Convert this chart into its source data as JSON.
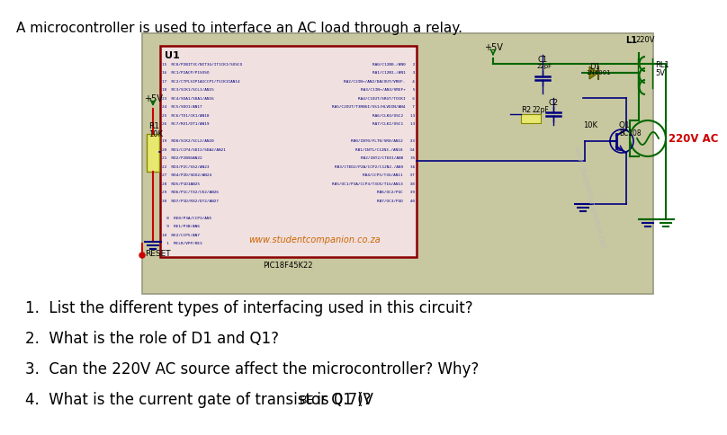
{
  "title": "A microcontroller is used to interface an AC load through a relay.",
  "title_fontsize": 11,
  "bg_color": "#ffffff",
  "circuit_bg": "#c8c8a0",
  "circuit_border": "#999980",
  "q_fontsize": 12,
  "chip_color": "#8b0000",
  "chip_fill": "#f5e8e8",
  "chip_label": "U1",
  "chip_text_color": "#000080",
  "website": "www.studentcompanion.co.za",
  "website_color": "#cc6600",
  "vcc_label": "+5V",
  "relay_label": "RL1\n5V",
  "ac_label": "220V AC",
  "ac_color": "#cc0000",
  "l1_label": "L1",
  "l1_v_label": "220V",
  "r1_label": "R1",
  "r2_label": "R2",
  "c1_label": "C1",
  "c2_label": "C2",
  "d1_label": "D1",
  "q1_label": "Q1",
  "pic_label": "PIC18F45K22",
  "reset_label": "RESET",
  "wire_color_green": "#006600",
  "wire_color_red": "#cc0000",
  "wire_color_blue": "#000080",
  "left_pins": [
    "15  RC0/P2BIT3C/NIT3G/IT1CKI/SOSCO",
    "16  RC1/P2ACP/P1SOSO",
    "17  RC2/CTPLSIP1AICCP1/T5CKIIAN14",
    "18  RC3/SCK1/SCL1/AN15",
    "23  RC4/SDA1/SDA1/AN16",
    "24  RC5/SDO1/AN17",
    "25  RC6/TX1/CK1/AN18",
    "26  RC7/RX1/DT1/AN19",
    "",
    "19  RD0/SCK2/SCL2/AN20",
    "20  RD1/CCP4/SDI2/SDA2/AN21",
    "21  RD2/P2BSDAN22",
    "22  RD3/P2C/SS2/AN23",
    "27  RD4/P2D/SDO2/AN24",
    "28  RD5/P1DIAN25",
    "29  RD6/P1C/TX2/CK2/AN26",
    "30  RD7/P1D/RX2/DT2/AN27",
    "",
    "  8  RE0/P3A/CCP3/AN5",
    "  9  RE1/P3B/AN6",
    "10  RE2/CCP5/AN7",
    "  1  MCLR/VPP/RE3"
  ],
  "right_pins": [
    "RA0/C12N0-/AN0   2",
    "RA1/C12N1-/AN1   3",
    "RA2/C2IN+/AN2/DACOUT/VREF-   4",
    "RA3/C1IN+/AN3/VREF+   5",
    "RA4/C1OUT/SRGT/TOCKI   6",
    "RA5/C2OUT/T3RNGI/SS1/HLVDIN/AN4   7",
    "RA6/CLKO/OSC2   13",
    "RA7/CLKI/OSC1   13",
    "",
    "RB0/INT0/FLT0/SR0/AN12   33",
    "RB1/INT1/C12N3-/AN10   34",
    "RB2/INT2/CTED1/AN8   35",
    "RB3/CTED2/P2A/CCP2/C12N2-/AN9   36",
    "RB4/CCP5/T3G/AN11   37",
    "RB5/OC1/P3A/CCP3/T3CK/T1G/AN13   38",
    "RB6/OC2/PGC   39",
    "RB7/OC3/PGD   40"
  ]
}
